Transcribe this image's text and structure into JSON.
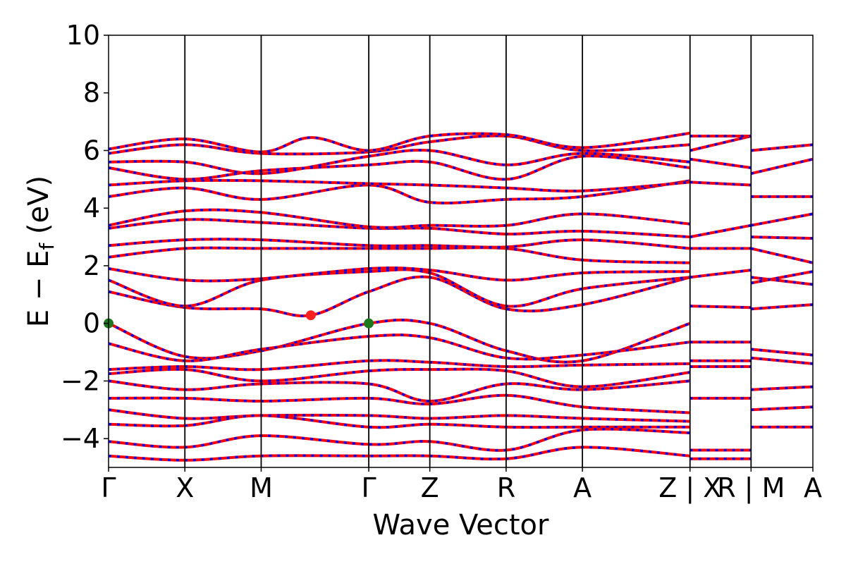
{
  "chart_data": {
    "type": "line",
    "xlabel": "Wave Vector",
    "ylabel_parts": {
      "main": "E − E",
      "sub": "f",
      "unit": " (eV)"
    },
    "ylim": [
      -5,
      10
    ],
    "yticks": [
      -4,
      -2,
      0,
      2,
      4,
      6,
      8,
      10
    ],
    "ytick_labels": [
      "−4",
      "−2",
      "0",
      "2",
      "4",
      "6",
      "8",
      "10"
    ],
    "kpoints": [
      {
        "label": "Γ",
        "x": 0.0
      },
      {
        "label": "X",
        "x": 1.0
      },
      {
        "label": "M",
        "x": 2.0
      },
      {
        "label": "Γ",
        "x": 3.41
      },
      {
        "label": "Z",
        "x": 4.21
      },
      {
        "label": "R",
        "x": 5.21
      },
      {
        "label": "A",
        "x": 6.21
      },
      {
        "label": "Z | X",
        "x": 7.62
      },
      {
        "label": "R | M",
        "x": 8.42
      },
      {
        "label": "A",
        "x": 9.23
      }
    ],
    "xlim": [
      0,
      9.23
    ],
    "grid": false,
    "line_colors": {
      "spin_up": "#ff0000",
      "spin_down": "#0000ff"
    },
    "markers": [
      {
        "kind": "VBM",
        "x": 0.0,
        "y": 0.0,
        "color": "#1b7a1b"
      },
      {
        "kind": "VBM",
        "x": 3.41,
        "y": 0.0,
        "color": "#1b7a1b"
      },
      {
        "kind": "CBM",
        "x": 2.65,
        "y": 0.28,
        "color": "#ff2020"
      }
    ],
    "bands": [
      [
        [
          0,
          0
        ],
        [
          1,
          -1.15
        ],
        [
          2,
          -0.95
        ],
        [
          3.41,
          -0.0
        ],
        [
          4.21,
          0.0
        ],
        [
          5.21,
          -0.95
        ],
        [
          6.21,
          -1.3
        ],
        [
          7.62,
          0.0
        ]
      ],
      [
        [
          0,
          -0.7
        ],
        [
          1,
          -1.3
        ],
        [
          2,
          -0.9
        ],
        [
          3.41,
          -0.45
        ],
        [
          4.21,
          -0.5
        ],
        [
          5.21,
          -1.2
        ],
        [
          6.21,
          -1.1
        ],
        [
          7.62,
          -0.65
        ]
      ],
      [
        [
          0,
          -1.6
        ],
        [
          1,
          -1.5
        ],
        [
          2,
          -1.6
        ],
        [
          3.41,
          -1.3
        ],
        [
          4.21,
          -1.35
        ],
        [
          5.21,
          -1.5
        ],
        [
          6.21,
          -1.45
        ],
        [
          7.62,
          -1.4
        ]
      ],
      [
        [
          0,
          -1.75
        ],
        [
          1,
          -1.6
        ],
        [
          2,
          -2.0
        ],
        [
          3.41,
          -1.65
        ],
        [
          4.21,
          -1.6
        ],
        [
          5.21,
          -1.65
        ],
        [
          6.21,
          -2.2
        ],
        [
          7.62,
          -1.7
        ]
      ],
      [
        [
          0,
          -2.0
        ],
        [
          1,
          -2.3
        ],
        [
          2,
          -2.1
        ],
        [
          3.41,
          -2.1
        ],
        [
          4.21,
          -2.7
        ],
        [
          5.21,
          -2.1
        ],
        [
          6.21,
          -2.3
        ],
        [
          7.62,
          -2.0
        ]
      ],
      [
        [
          0,
          -2.6
        ],
        [
          1,
          -2.6
        ],
        [
          2,
          -2.7
        ],
        [
          3.41,
          -2.6
        ],
        [
          4.21,
          -2.8
        ],
        [
          5.21,
          -2.5
        ],
        [
          6.21,
          -2.9
        ],
        [
          7.62,
          -3.1
        ]
      ],
      [
        [
          0,
          -3.0
        ],
        [
          1,
          -3.3
        ],
        [
          2,
          -3.2
        ],
        [
          3.41,
          -3.2
        ],
        [
          4.21,
          -3.3
        ],
        [
          5.21,
          -3.2
        ],
        [
          6.21,
          -3.3
        ],
        [
          7.62,
          -3.4
        ]
      ],
      [
        [
          0,
          -3.5
        ],
        [
          1,
          -3.55
        ],
        [
          2,
          -3.2
        ],
        [
          3.41,
          -3.6
        ],
        [
          4.21,
          -3.5
        ],
        [
          5.21,
          -3.6
        ],
        [
          6.21,
          -3.6
        ],
        [
          7.62,
          -3.6
        ]
      ],
      [
        [
          0,
          -4.1
        ],
        [
          1,
          -4.3
        ],
        [
          2,
          -3.9
        ],
        [
          3.41,
          -4.2
        ],
        [
          4.21,
          -4.1
        ],
        [
          5.21,
          -4.4
        ],
        [
          6.21,
          -3.7
        ],
        [
          7.62,
          -3.8
        ]
      ],
      [
        [
          0,
          -4.6
        ],
        [
          1,
          -4.75
        ],
        [
          2,
          -4.6
        ],
        [
          3.41,
          -4.6
        ],
        [
          4.21,
          -4.6
        ],
        [
          5.21,
          -4.7
        ],
        [
          6.21,
          -4.3
        ],
        [
          7.62,
          -4.6
        ]
      ],
      [
        [
          0,
          1.1
        ],
        [
          1,
          0.55
        ],
        [
          2,
          0.5
        ],
        [
          2.65,
          0.28
        ],
        [
          3.41,
          1.1
        ],
        [
          4.21,
          1.6
        ],
        [
          5.21,
          0.5
        ],
        [
          6.21,
          0.65
        ],
        [
          7.62,
          1.6
        ]
      ],
      [
        [
          0,
          1.5
        ],
        [
          1,
          0.6
        ],
        [
          2,
          1.5
        ],
        [
          3.41,
          1.8
        ],
        [
          4.21,
          1.75
        ],
        [
          5.21,
          0.6
        ],
        [
          6.21,
          1.2
        ],
        [
          7.62,
          1.6
        ]
      ],
      [
        [
          0,
          1.9
        ],
        [
          1,
          1.5
        ],
        [
          2,
          1.55
        ],
        [
          3.41,
          1.9
        ],
        [
          4.21,
          1.85
        ],
        [
          5.21,
          1.5
        ],
        [
          6.21,
          1.75
        ],
        [
          7.62,
          1.8
        ]
      ],
      [
        [
          0,
          2.3
        ],
        [
          1,
          2.6
        ],
        [
          2,
          2.6
        ],
        [
          3.41,
          2.6
        ],
        [
          4.21,
          2.6
        ],
        [
          5.21,
          2.6
        ],
        [
          6.21,
          2.2
        ],
        [
          7.62,
          2.1
        ]
      ],
      [
        [
          0,
          2.7
        ],
        [
          1,
          2.9
        ],
        [
          2,
          2.9
        ],
        [
          3.41,
          2.7
        ],
        [
          4.21,
          2.7
        ],
        [
          5.21,
          2.65
        ],
        [
          6.21,
          2.9
        ],
        [
          7.62,
          2.6
        ]
      ],
      [
        [
          0,
          3.3
        ],
        [
          1,
          3.6
        ],
        [
          2,
          3.5
        ],
        [
          3.41,
          3.3
        ],
        [
          4.21,
          3.3
        ],
        [
          5.21,
          3.1
        ],
        [
          6.21,
          3.2
        ],
        [
          7.62,
          3.0
        ]
      ],
      [
        [
          0,
          3.4
        ],
        [
          1,
          3.9
        ],
        [
          2,
          3.85
        ],
        [
          3.41,
          3.35
        ],
        [
          4.21,
          3.4
        ],
        [
          5.21,
          3.4
        ],
        [
          6.21,
          3.8
        ],
        [
          7.62,
          3.45
        ]
      ],
      [
        [
          0,
          4.4
        ],
        [
          1,
          4.7
        ],
        [
          2,
          4.3
        ],
        [
          3.41,
          4.8
        ],
        [
          4.21,
          4.2
        ],
        [
          5.21,
          4.3
        ],
        [
          6.21,
          4.4
        ],
        [
          7.62,
          4.95
        ]
      ],
      [
        [
          0,
          4.8
        ],
        [
          1,
          4.95
        ],
        [
          2,
          4.95
        ],
        [
          3.41,
          4.85
        ],
        [
          4.21,
          4.8
        ],
        [
          5.21,
          4.7
        ],
        [
          6.21,
          4.6
        ],
        [
          7.62,
          4.9
        ]
      ],
      [
        [
          0,
          5.4
        ],
        [
          1,
          5.0
        ],
        [
          2,
          5.3
        ],
        [
          3.41,
          5.5
        ],
        [
          4.21,
          5.6
        ],
        [
          5.21,
          5.0
        ],
        [
          6.21,
          5.8
        ],
        [
          7.62,
          5.4
        ]
      ],
      [
        [
          0,
          5.6
        ],
        [
          1,
          5.6
        ],
        [
          2,
          5.2
        ],
        [
          3.41,
          5.8
        ],
        [
          4.21,
          6.0
        ],
        [
          5.21,
          5.5
        ],
        [
          6.21,
          5.9
        ],
        [
          7.62,
          5.6
        ]
      ],
      [
        [
          0,
          5.9
        ],
        [
          1,
          6.2
        ],
        [
          2,
          5.9
        ],
        [
          3.41,
          5.95
        ],
        [
          4.21,
          6.3
        ],
        [
          5.21,
          6.5
        ],
        [
          6.21,
          6.0
        ],
        [
          7.62,
          6.2
        ]
      ],
      [
        [
          0,
          6.05
        ],
        [
          1,
          6.4
        ],
        [
          2,
          5.95
        ],
        [
          2.65,
          6.45
        ],
        [
          3.41,
          6.0
        ],
        [
          4.21,
          6.5
        ],
        [
          5.21,
          6.55
        ],
        [
          6.21,
          6.1
        ],
        [
          7.62,
          6.6
        ]
      ],
      [
        [
          7.62,
          -0.65
        ],
        [
          8.42,
          -0.65
        ]
      ],
      [
        [
          7.62,
          -1.3
        ],
        [
          8.42,
          -1.3
        ]
      ],
      [
        [
          7.62,
          -1.5
        ],
        [
          8.42,
          -1.5
        ]
      ],
      [
        [
          7.62,
          -2.6
        ],
        [
          8.42,
          -2.6
        ]
      ],
      [
        [
          7.62,
          -4.4
        ],
        [
          8.42,
          -4.4
        ]
      ],
      [
        [
          7.62,
          -4.7
        ],
        [
          8.42,
          -4.7
        ]
      ],
      [
        [
          7.62,
          0.6
        ],
        [
          8.42,
          0.55
        ]
      ],
      [
        [
          7.62,
          1.6
        ],
        [
          8.42,
          1.85
        ]
      ],
      [
        [
          7.62,
          2.6
        ],
        [
          8.42,
          2.6
        ]
      ],
      [
        [
          7.62,
          3.0
        ],
        [
          8.42,
          3.4
        ]
      ],
      [
        [
          7.62,
          4.9
        ],
        [
          8.42,
          4.8
        ]
      ],
      [
        [
          7.62,
          5.7
        ],
        [
          8.42,
          5.4
        ]
      ],
      [
        [
          7.62,
          6.0
        ],
        [
          8.42,
          6.5
        ]
      ],
      [
        [
          7.62,
          6.5
        ],
        [
          8.42,
          6.5
        ]
      ],
      [
        [
          8.42,
          -0.9
        ],
        [
          9.23,
          -1.1
        ]
      ],
      [
        [
          8.42,
          -1.2
        ],
        [
          9.23,
          -1.4
        ]
      ],
      [
        [
          8.42,
          -2.3
        ],
        [
          9.23,
          -2.2
        ]
      ],
      [
        [
          8.42,
          -3.0
        ],
        [
          9.23,
          -2.9
        ]
      ],
      [
        [
          8.42,
          -3.6
        ],
        [
          9.23,
          -3.6
        ]
      ],
      [
        [
          8.42,
          0.5
        ],
        [
          9.23,
          0.65
        ]
      ],
      [
        [
          8.42,
          1.4
        ],
        [
          9.23,
          1.8
        ]
      ],
      [
        [
          8.42,
          1.6
        ],
        [
          9.23,
          1.35
        ]
      ],
      [
        [
          8.42,
          2.6
        ],
        [
          9.23,
          2.1
        ]
      ],
      [
        [
          8.42,
          3.0
        ],
        [
          9.23,
          2.95
        ]
      ],
      [
        [
          8.42,
          3.4
        ],
        [
          9.23,
          3.8
        ]
      ],
      [
        [
          8.42,
          4.4
        ],
        [
          9.23,
          4.4
        ]
      ],
      [
        [
          8.42,
          5.2
        ],
        [
          9.23,
          5.7
        ]
      ],
      [
        [
          8.42,
          6.0
        ],
        [
          9.23,
          6.2
        ]
      ]
    ]
  }
}
